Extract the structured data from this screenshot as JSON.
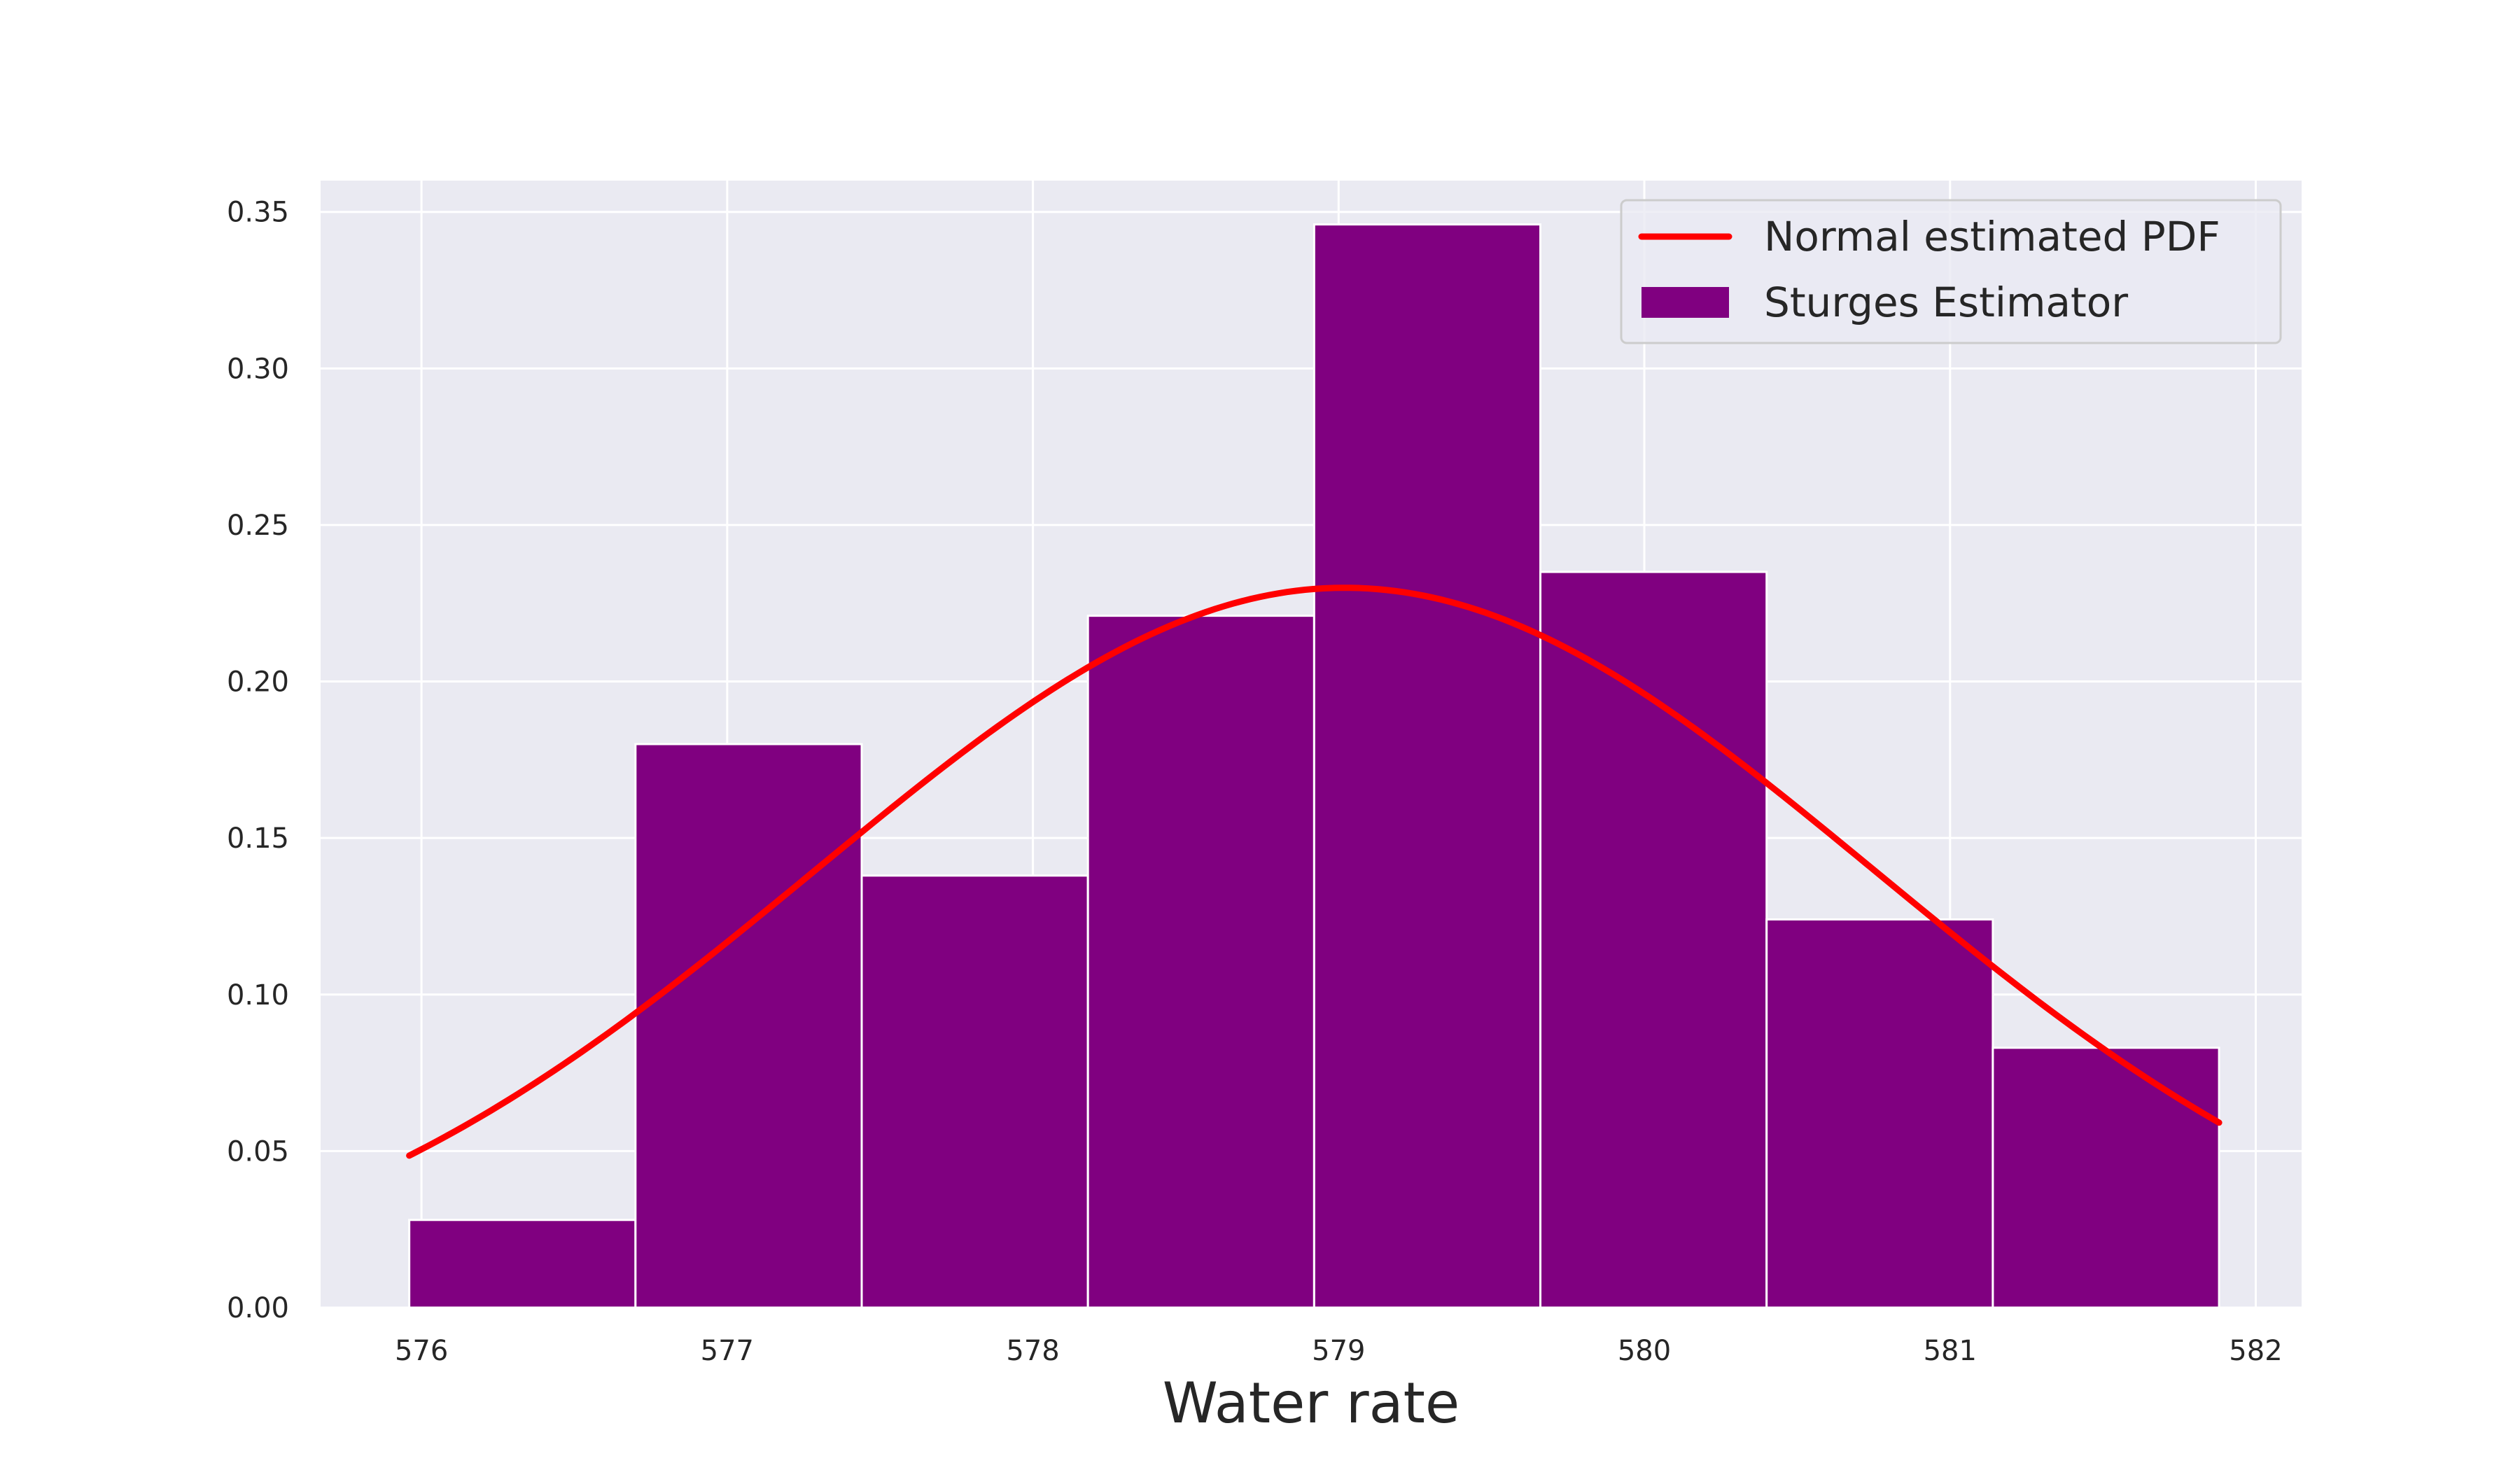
{
  "chart_data": {
    "type": "bar",
    "title": "",
    "xlabel": "Water rate",
    "ylabel": "",
    "xlim": [
      575.67,
      582.15
    ],
    "ylim": [
      0.0,
      0.36
    ],
    "grid": true,
    "legend_position": "top-right",
    "x_ticks": [
      576,
      577,
      578,
      579,
      580,
      581,
      582
    ],
    "x_tick_labels": [
      "576",
      "577",
      "578",
      "579",
      "580",
      "581",
      "582"
    ],
    "y_ticks": [
      0.0,
      0.05,
      0.1,
      0.15,
      0.2,
      0.25,
      0.3,
      0.35
    ],
    "y_tick_labels": [
      "0.00",
      "0.05",
      "0.10",
      "0.15",
      "0.20",
      "0.25",
      "0.30",
      "0.35"
    ],
    "bin_edges": [
      575.96,
      576.7,
      577.44,
      578.18,
      578.92,
      579.66,
      580.4,
      581.14,
      581.88
    ],
    "values": [
      0.028,
      0.18,
      0.138,
      0.221,
      0.346,
      0.235,
      0.124,
      0.083
    ],
    "series": [
      {
        "name": "Normal estimated PDF",
        "type": "line",
        "color": "#ff0000",
        "distribution": {
          "mean": 579.02,
          "std": 1.735
        },
        "x_range": [
          575.96,
          581.88
        ]
      },
      {
        "name": "Sturges Estimator",
        "type": "bar",
        "color": "#800080"
      }
    ],
    "colors": {
      "plot_background": "#eaeaf2",
      "grid": "#ffffff",
      "bar": "#800080",
      "bar_edge": "#ffffff",
      "line": "#ff0000"
    }
  }
}
